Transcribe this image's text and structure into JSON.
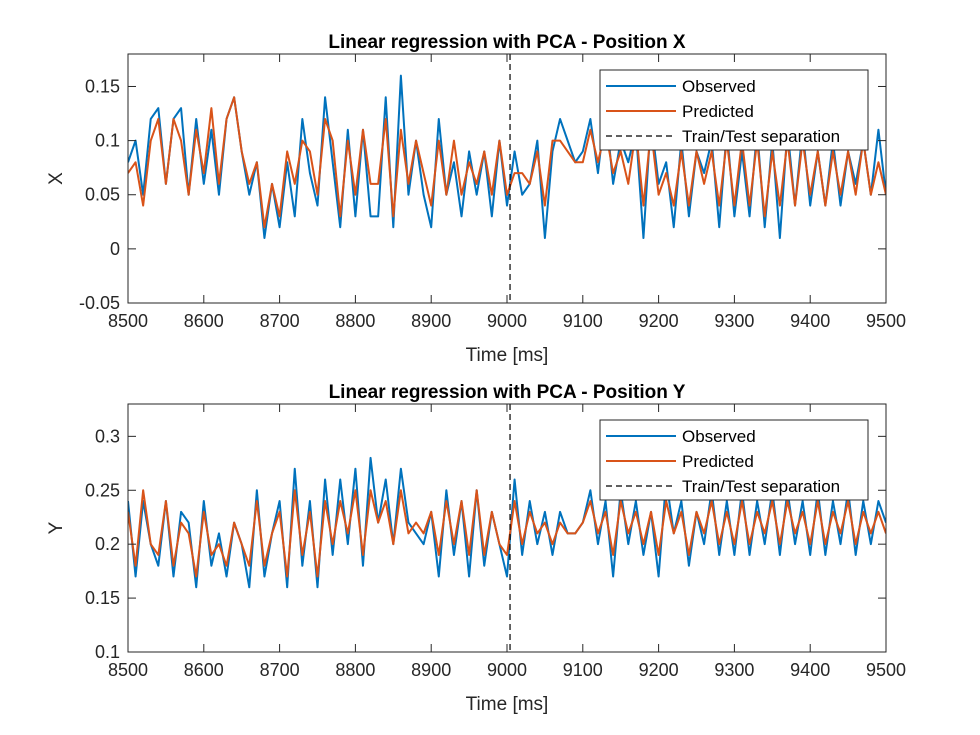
{
  "chart_data": [
    {
      "type": "line",
      "title": "Linear regression with PCA - Position X",
      "xlabel": "Time [ms]",
      "ylabel": "X",
      "xlim": [
        8500,
        9500
      ],
      "ylim": [
        -0.05,
        0.18
      ],
      "xticks": [
        8500,
        8600,
        8700,
        8800,
        8900,
        9000,
        9100,
        9200,
        9300,
        9400,
        9500
      ],
      "xtick_labels": [
        "8500",
        "8600",
        "8700",
        "8800",
        "8900",
        "9000",
        "9100",
        "9200",
        "9300",
        "9400",
        "9500"
      ],
      "yticks": [
        -0.05,
        0,
        0.05,
        0.1,
        0.15
      ],
      "ytick_labels": [
        "-0.05",
        "0",
        "0.05",
        "0.1",
        "0.15"
      ],
      "separation_x": 9004,
      "legend_position": "top-right",
      "legend": [
        "Observed",
        "Predicted",
        "Train/Test separation"
      ],
      "series": [
        {
          "name": "Observed",
          "color": "#0072BD",
          "x": [
            8500,
            8510,
            8520,
            8530,
            8540,
            8550,
            8560,
            8570,
            8580,
            8590,
            8600,
            8610,
            8620,
            8630,
            8640,
            8650,
            8660,
            8670,
            8680,
            8690,
            8700,
            8710,
            8720,
            8730,
            8740,
            8750,
            8760,
            8770,
            8780,
            8790,
            8800,
            8810,
            8820,
            8830,
            8840,
            8850,
            8860,
            8870,
            8880,
            8890,
            8900,
            8910,
            8920,
            8930,
            8940,
            8950,
            8960,
            8970,
            8980,
            8990,
            9000,
            9010,
            9020,
            9030,
            9040,
            9050,
            9060,
            9070,
            9080,
            9090,
            9100,
            9110,
            9120,
            9130,
            9140,
            9150,
            9160,
            9170,
            9180,
            9190,
            9200,
            9210,
            9220,
            9230,
            9240,
            9250,
            9260,
            9270,
            9280,
            9290,
            9300,
            9310,
            9320,
            9330,
            9340,
            9350,
            9360,
            9370,
            9380,
            9390,
            9400,
            9410,
            9420,
            9430,
            9440,
            9450,
            9460,
            9470,
            9480,
            9490,
            9500
          ],
          "values": [
            0.08,
            0.1,
            0.05,
            0.12,
            0.13,
            0.06,
            0.12,
            0.13,
            0.05,
            0.12,
            0.06,
            0.11,
            0.05,
            0.12,
            0.14,
            0.09,
            0.05,
            0.08,
            0.01,
            0.06,
            0.02,
            0.08,
            0.03,
            0.12,
            0.07,
            0.04,
            0.14,
            0.08,
            0.02,
            0.11,
            0.03,
            0.11,
            0.03,
            0.03,
            0.14,
            0.02,
            0.16,
            0.05,
            0.1,
            0.05,
            0.02,
            0.12,
            0.05,
            0.08,
            0.03,
            0.09,
            0.05,
            0.09,
            0.03,
            0.1,
            0.04,
            0.09,
            0.05,
            0.06,
            0.1,
            0.01,
            0.09,
            0.12,
            0.1,
            0.08,
            0.09,
            0.12,
            0.07,
            0.13,
            0.06,
            0.1,
            0.08,
            0.11,
            0.01,
            0.12,
            0.06,
            0.08,
            0.02,
            0.1,
            0.03,
            0.09,
            0.07,
            0.1,
            0.02,
            0.11,
            0.03,
            0.09,
            0.03,
            0.11,
            0.02,
            0.1,
            0.01,
            0.11,
            0.04,
            0.11,
            0.04,
            0.09,
            0.04,
            0.1,
            0.04,
            0.09,
            0.06,
            0.1,
            0.05,
            0.11,
            0.05
          ]
        },
        {
          "name": "Predicted",
          "color": "#D95319",
          "x": [
            8500,
            8510,
            8520,
            8530,
            8540,
            8550,
            8560,
            8570,
            8580,
            8590,
            8600,
            8610,
            8620,
            8630,
            8640,
            8650,
            8660,
            8670,
            8680,
            8690,
            8700,
            8710,
            8720,
            8730,
            8740,
            8750,
            8760,
            8770,
            8780,
            8790,
            8800,
            8810,
            8820,
            8830,
            8840,
            8850,
            8860,
            8870,
            8880,
            8890,
            8900,
            8910,
            8920,
            8930,
            8940,
            8950,
            8960,
            8970,
            8980,
            8990,
            9000,
            9010,
            9020,
            9030,
            9040,
            9050,
            9060,
            9070,
            9080,
            9090,
            9100,
            9110,
            9120,
            9130,
            9140,
            9150,
            9160,
            9170,
            9180,
            9190,
            9200,
            9210,
            9220,
            9230,
            9240,
            9250,
            9260,
            9270,
            9280,
            9290,
            9300,
            9310,
            9320,
            9330,
            9340,
            9350,
            9360,
            9370,
            9380,
            9390,
            9400,
            9410,
            9420,
            9430,
            9440,
            9450,
            9460,
            9470,
            9480,
            9490,
            9500
          ],
          "values": [
            0.07,
            0.08,
            0.04,
            0.1,
            0.12,
            0.06,
            0.12,
            0.1,
            0.05,
            0.11,
            0.07,
            0.13,
            0.06,
            0.12,
            0.14,
            0.09,
            0.06,
            0.08,
            0.02,
            0.06,
            0.03,
            0.09,
            0.06,
            0.1,
            0.09,
            0.05,
            0.12,
            0.1,
            0.03,
            0.1,
            0.05,
            0.11,
            0.06,
            0.06,
            0.12,
            0.03,
            0.11,
            0.06,
            0.1,
            0.07,
            0.04,
            0.1,
            0.05,
            0.1,
            0.05,
            0.08,
            0.06,
            0.09,
            0.05,
            0.1,
            0.05,
            0.07,
            0.07,
            0.06,
            0.09,
            0.04,
            0.1,
            0.1,
            0.09,
            0.08,
            0.08,
            0.11,
            0.08,
            0.11,
            0.07,
            0.09,
            0.06,
            0.11,
            0.04,
            0.11,
            0.05,
            0.07,
            0.04,
            0.09,
            0.04,
            0.09,
            0.06,
            0.09,
            0.04,
            0.1,
            0.04,
            0.1,
            0.04,
            0.1,
            0.03,
            0.09,
            0.04,
            0.1,
            0.04,
            0.1,
            0.05,
            0.09,
            0.04,
            0.09,
            0.05,
            0.09,
            0.05,
            0.1,
            0.05,
            0.08,
            0.05
          ]
        }
      ]
    },
    {
      "type": "line",
      "title": "Linear regression with PCA - Position Y",
      "xlabel": "Time [ms]",
      "ylabel": "Y",
      "xlim": [
        8500,
        9500
      ],
      "ylim": [
        0.1,
        0.33
      ],
      "xticks": [
        8500,
        8600,
        8700,
        8800,
        8900,
        9000,
        9100,
        9200,
        9300,
        9400,
        9500
      ],
      "xtick_labels": [
        "8500",
        "8600",
        "8700",
        "8800",
        "8900",
        "9000",
        "9100",
        "9200",
        "9300",
        "9400",
        "9500"
      ],
      "yticks": [
        0.1,
        0.15,
        0.2,
        0.25,
        0.3
      ],
      "ytick_labels": [
        "0.1",
        "0.15",
        "0.2",
        "0.25",
        "0.3"
      ],
      "separation_x": 9004,
      "legend_position": "top-right",
      "legend": [
        "Observed",
        "Predicted",
        "Train/Test separation"
      ],
      "series": [
        {
          "name": "Observed",
          "color": "#0072BD",
          "x": [
            8500,
            8510,
            8520,
            8530,
            8540,
            8550,
            8560,
            8570,
            8580,
            8590,
            8600,
            8610,
            8620,
            8630,
            8640,
            8650,
            8660,
            8670,
            8680,
            8690,
            8700,
            8710,
            8720,
            8730,
            8740,
            8750,
            8760,
            8770,
            8780,
            8790,
            8800,
            8810,
            8820,
            8830,
            8840,
            8850,
            8860,
            8870,
            8880,
            8890,
            8900,
            8910,
            8920,
            8930,
            8940,
            8950,
            8960,
            8970,
            8980,
            8990,
            9000,
            9010,
            9020,
            9030,
            9040,
            9050,
            9060,
            9070,
            9080,
            9090,
            9100,
            9110,
            9120,
            9130,
            9140,
            9150,
            9160,
            9170,
            9180,
            9190,
            9200,
            9210,
            9220,
            9230,
            9240,
            9250,
            9260,
            9270,
            9280,
            9290,
            9300,
            9310,
            9320,
            9330,
            9340,
            9350,
            9360,
            9370,
            9380,
            9390,
            9400,
            9410,
            9420,
            9430,
            9440,
            9450,
            9460,
            9470,
            9480,
            9490,
            9500
          ],
          "values": [
            0.24,
            0.17,
            0.24,
            0.2,
            0.18,
            0.24,
            0.17,
            0.23,
            0.22,
            0.16,
            0.24,
            0.18,
            0.21,
            0.17,
            0.22,
            0.2,
            0.16,
            0.25,
            0.17,
            0.21,
            0.24,
            0.16,
            0.27,
            0.18,
            0.24,
            0.16,
            0.26,
            0.19,
            0.26,
            0.2,
            0.27,
            0.18,
            0.28,
            0.22,
            0.26,
            0.2,
            0.27,
            0.22,
            0.21,
            0.2,
            0.23,
            0.17,
            0.25,
            0.19,
            0.24,
            0.17,
            0.25,
            0.18,
            0.23,
            0.2,
            0.17,
            0.26,
            0.19,
            0.24,
            0.2,
            0.23,
            0.19,
            0.23,
            0.21,
            0.21,
            0.22,
            0.25,
            0.2,
            0.24,
            0.17,
            0.25,
            0.2,
            0.24,
            0.19,
            0.23,
            0.17,
            0.26,
            0.21,
            0.24,
            0.18,
            0.23,
            0.2,
            0.25,
            0.19,
            0.24,
            0.19,
            0.25,
            0.19,
            0.24,
            0.2,
            0.25,
            0.19,
            0.25,
            0.2,
            0.24,
            0.19,
            0.25,
            0.19,
            0.24,
            0.2,
            0.25,
            0.19,
            0.24,
            0.2,
            0.24,
            0.22
          ]
        },
        {
          "name": "Predicted",
          "color": "#D95319",
          "x": [
            8500,
            8510,
            8520,
            8530,
            8540,
            8550,
            8560,
            8570,
            8580,
            8590,
            8600,
            8610,
            8620,
            8630,
            8640,
            8650,
            8660,
            8670,
            8680,
            8690,
            8700,
            8710,
            8720,
            8730,
            8740,
            8750,
            8760,
            8770,
            8780,
            8790,
            8800,
            8810,
            8820,
            8830,
            8840,
            8850,
            8860,
            8870,
            8880,
            8890,
            8900,
            8910,
            8920,
            8930,
            8940,
            8950,
            8960,
            8970,
            8980,
            8990,
            9000,
            9010,
            9020,
            9030,
            9040,
            9050,
            9060,
            9070,
            9080,
            9090,
            9100,
            9110,
            9120,
            9130,
            9140,
            9150,
            9160,
            9170,
            9180,
            9190,
            9200,
            9210,
            9220,
            9230,
            9240,
            9250,
            9260,
            9270,
            9280,
            9290,
            9300,
            9310,
            9320,
            9330,
            9340,
            9350,
            9360,
            9370,
            9380,
            9390,
            9400,
            9410,
            9420,
            9430,
            9440,
            9450,
            9460,
            9470,
            9480,
            9490,
            9500
          ],
          "values": [
            0.23,
            0.18,
            0.25,
            0.2,
            0.19,
            0.24,
            0.18,
            0.22,
            0.21,
            0.17,
            0.23,
            0.19,
            0.2,
            0.18,
            0.22,
            0.2,
            0.18,
            0.24,
            0.18,
            0.21,
            0.23,
            0.17,
            0.25,
            0.19,
            0.23,
            0.17,
            0.24,
            0.2,
            0.24,
            0.21,
            0.25,
            0.19,
            0.25,
            0.22,
            0.24,
            0.2,
            0.25,
            0.21,
            0.22,
            0.21,
            0.23,
            0.19,
            0.24,
            0.2,
            0.24,
            0.19,
            0.25,
            0.19,
            0.23,
            0.2,
            0.19,
            0.24,
            0.2,
            0.23,
            0.21,
            0.22,
            0.2,
            0.22,
            0.21,
            0.21,
            0.22,
            0.24,
            0.21,
            0.23,
            0.19,
            0.24,
            0.21,
            0.23,
            0.2,
            0.23,
            0.19,
            0.24,
            0.21,
            0.23,
            0.19,
            0.23,
            0.21,
            0.24,
            0.2,
            0.23,
            0.2,
            0.24,
            0.2,
            0.23,
            0.21,
            0.24,
            0.2,
            0.24,
            0.21,
            0.23,
            0.2,
            0.24,
            0.2,
            0.23,
            0.21,
            0.24,
            0.2,
            0.23,
            0.21,
            0.23,
            0.21
          ]
        }
      ]
    }
  ],
  "colors": {
    "observed": "#0072BD",
    "predicted": "#D95319",
    "separation": "#000000",
    "axes": "#262626"
  }
}
